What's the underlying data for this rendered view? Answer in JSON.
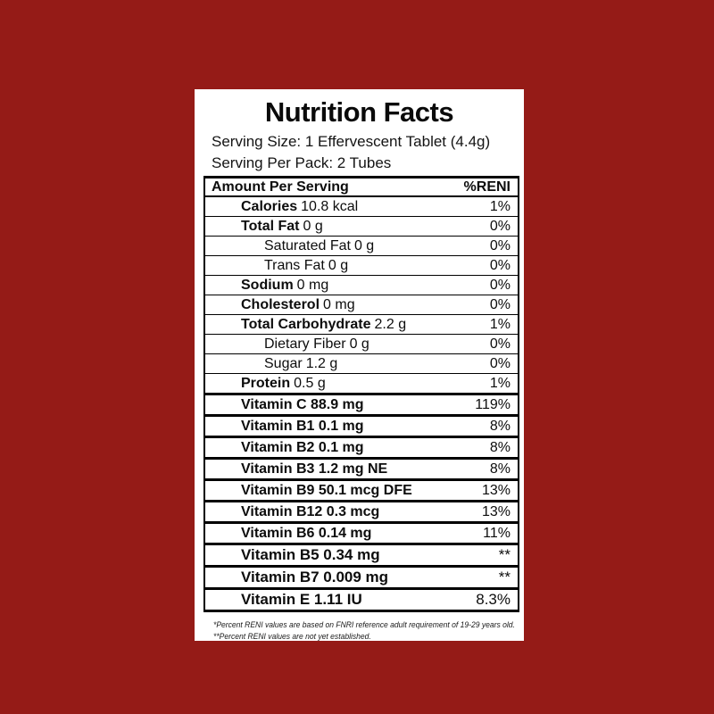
{
  "background_color": "#951b17",
  "label_background": "#ffffff",
  "border_color": "#000000",
  "label": {
    "title": "Nutrition Facts",
    "serving_size": "Serving Size: 1 Effervescent Tablet (4.4g)",
    "serving_per_pack": "Serving Per Pack: 2 Tubes"
  },
  "table": {
    "header": {
      "left": "Amount Per Serving",
      "right": "%RENI"
    },
    "rows": [
      {
        "id": "calories",
        "name": "Calories",
        "amount": "10.8 kcal",
        "pct": "1%",
        "indent": 1,
        "name_bold": true,
        "tier": "regular",
        "sep": "thin"
      },
      {
        "id": "total-fat",
        "name": "Total Fat",
        "amount": "0 g",
        "pct": "0%",
        "indent": 1,
        "name_bold": true,
        "tier": "regular",
        "sep": "thin"
      },
      {
        "id": "saturated-fat",
        "name": "Saturated Fat",
        "amount": "0 g",
        "pct": "0%",
        "indent": 2,
        "name_bold": false,
        "tier": "regular",
        "sep": "thin"
      },
      {
        "id": "trans-fat",
        "name": "Trans Fat",
        "amount": "0 g",
        "pct": "0%",
        "indent": 2,
        "name_bold": false,
        "tier": "regular",
        "sep": "thin"
      },
      {
        "id": "sodium",
        "name": "Sodium",
        "amount": "0 mg",
        "pct": "0%",
        "indent": 1,
        "name_bold": true,
        "tier": "regular",
        "sep": "thin"
      },
      {
        "id": "cholesterol",
        "name": "Cholesterol",
        "amount": "0 mg",
        "pct": "0%",
        "indent": 1,
        "name_bold": true,
        "tier": "regular",
        "sep": "thin"
      },
      {
        "id": "total-carbohydrate",
        "name": "Total Carbohydrate",
        "amount": "2.2 g",
        "pct": "1%",
        "indent": 1,
        "name_bold": true,
        "tier": "regular",
        "sep": "thin"
      },
      {
        "id": "dietary-fiber",
        "name": "Dietary Fiber",
        "amount": "0 g",
        "pct": "0%",
        "indent": 2,
        "name_bold": false,
        "tier": "regular",
        "sep": "thin"
      },
      {
        "id": "sugar",
        "name": "Sugar",
        "amount": "1.2 g",
        "pct": "0%",
        "indent": 2,
        "name_bold": false,
        "tier": "regular",
        "sep": "thin"
      },
      {
        "id": "protein",
        "name": "Protein",
        "amount": "0.5 g",
        "pct": "1%",
        "indent": 1,
        "name_bold": true,
        "tier": "regular",
        "sep": "thick"
      },
      {
        "id": "vitamin-c",
        "name": "Vitamin C 88.9 mg",
        "amount": "",
        "pct": "119%",
        "indent": 1,
        "name_bold": true,
        "tier": "vitamin",
        "sep": "thick"
      },
      {
        "id": "vitamin-b1",
        "name": "Vitamin B1 0.1 mg",
        "amount": "",
        "pct": "8%",
        "indent": 1,
        "name_bold": true,
        "tier": "vitamin",
        "sep": "thick"
      },
      {
        "id": "vitamin-b2",
        "name": "Vitamin B2 0.1 mg",
        "amount": "",
        "pct": "8%",
        "indent": 1,
        "name_bold": true,
        "tier": "vitamin",
        "sep": "thick"
      },
      {
        "id": "vitamin-b3",
        "name": "Vitamin B3 1.2 mg NE",
        "amount": "",
        "pct": "8%",
        "indent": 1,
        "name_bold": true,
        "tier": "vitamin",
        "sep": "thick"
      },
      {
        "id": "vitamin-b9",
        "name": "Vitamin B9 50.1 mcg DFE",
        "amount": "",
        "pct": "13%",
        "indent": 1,
        "name_bold": true,
        "tier": "vitamin",
        "sep": "thick"
      },
      {
        "id": "vitamin-b12",
        "name": "Vitamin B12 0.3 mcg",
        "amount": "",
        "pct": "13%",
        "indent": 1,
        "name_bold": true,
        "tier": "vitamin",
        "sep": "thick"
      },
      {
        "id": "vitamin-b6",
        "name": "Vitamin B6 0.14 mg",
        "amount": "",
        "pct": "11%",
        "indent": 1,
        "name_bold": true,
        "tier": "vitamin",
        "sep": "thick"
      },
      {
        "id": "vitamin-b5",
        "name": "Vitamin B5 0.34 mg",
        "amount": "",
        "pct": "**",
        "indent": 1,
        "name_bold": true,
        "tier": "vitamin-lg",
        "sep": "thick"
      },
      {
        "id": "vitamin-b7",
        "name": "Vitamin B7 0.009 mg",
        "amount": "",
        "pct": "**",
        "indent": 1,
        "name_bold": true,
        "tier": "vitamin-lg",
        "sep": "thick"
      },
      {
        "id": "vitamin-e",
        "name": "Vitamin E 1.11 IU",
        "amount": "",
        "pct": "8.3%",
        "indent": 1,
        "name_bold": true,
        "tier": "vitamin-lg",
        "sep": "none"
      }
    ]
  },
  "footnotes": [
    "*Percent RENI values are based on FNRI reference adult requirement of 19-29 years old.",
    "**Percent RENI values are not yet established."
  ]
}
